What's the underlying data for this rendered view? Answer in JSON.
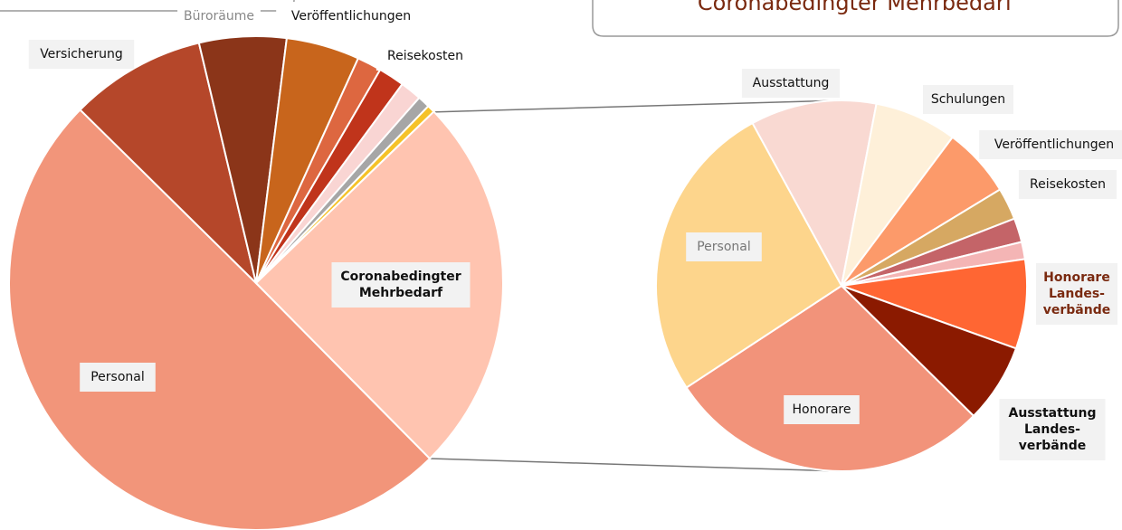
{
  "chart_data": [
    {
      "type": "pie",
      "startangle": 135.3,
      "categories": [
        "Personal",
        "Versicherung",
        "Büroräume",
        "Veröffentlichungen",
        null,
        "Reisekosten",
        null,
        null,
        null,
        "Coronabedingter\nMehrbedarf"
      ],
      "values": [
        49.8,
        8.9,
        5.7,
        4.8,
        1.6,
        1.7,
        1.4,
        0.8,
        0.5,
        24.8
      ],
      "colors": [
        "#F2957A",
        "#B5472A",
        "#8B3519",
        "#C8651C",
        "#DD6740",
        "#C0341B",
        "#F9D5D3",
        "#A6A6A6",
        "#F5C228",
        "#FFC4B0"
      ]
    },
    {
      "type": "pie",
      "startangle": 331.3,
      "title": "Coronabedingter Mehrbedarf",
      "categories": [
        "Ausstattung",
        "Schulungen",
        "Veröffentlichungen",
        "Reisekosten",
        null,
        null,
        "Honorare\nLandes-\nverbände",
        "Ausstattung\nLandes-\nverbände",
        "Honorare",
        "Personal"
      ],
      "values": [
        11.0,
        7.2,
        6.1,
        2.8,
        2.1,
        1.5,
        7.8,
        6.9,
        28.4,
        26.3
      ],
      "colors": [
        "#F9D9D2",
        "#FEF0D9",
        "#FC9A6A",
        "#D6A862",
        "#C46468",
        "#F4B5B5",
        "#FF6633",
        "#8B1A00",
        "#F2937A",
        "#FDD58C"
      ]
    }
  ]
}
